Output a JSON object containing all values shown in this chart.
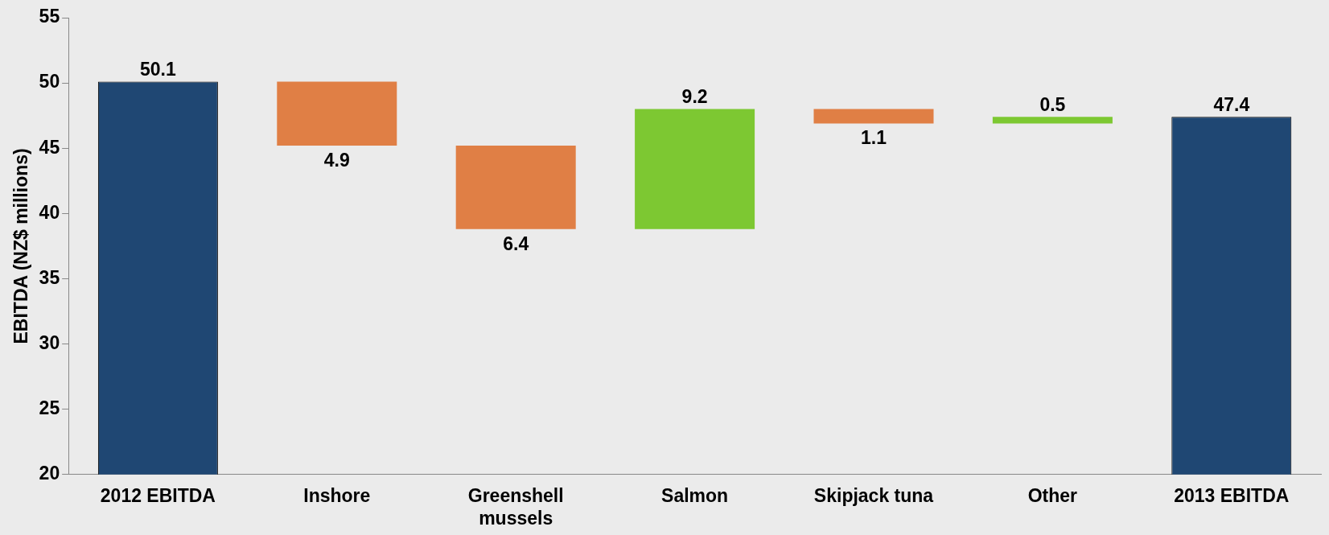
{
  "chart_data": {
    "type": "bar",
    "ylabel": "EBITDA (NZ$ millions)",
    "categories": [
      "2012 EBITDA",
      "Inshore",
      "Greenshell mussels",
      "Salmon",
      "Skipjack tuna",
      "Other",
      "2013 EBITDA"
    ],
    "values": [
      50.1,
      -4.9,
      -6.4,
      9.2,
      -1.1,
      0.5,
      47.4
    ],
    "base": [
      null,
      50.1,
      45.2,
      38.8,
      48.0,
      46.9,
      null
    ],
    "colors": [
      "#1f4773",
      "#e07f45",
      "#e07f45",
      "#7dc832",
      "#e07f45",
      "#7dc832",
      "#1f4773"
    ],
    "value_labels": [
      "50.1",
      "4.9",
      "6.4",
      "9.2",
      "1.1",
      "0.5",
      "47.4"
    ],
    "ylim": [
      20,
      55
    ],
    "yticks": [
      20,
      25,
      30,
      35,
      40,
      45,
      50,
      55
    ],
    "grid": false
  }
}
